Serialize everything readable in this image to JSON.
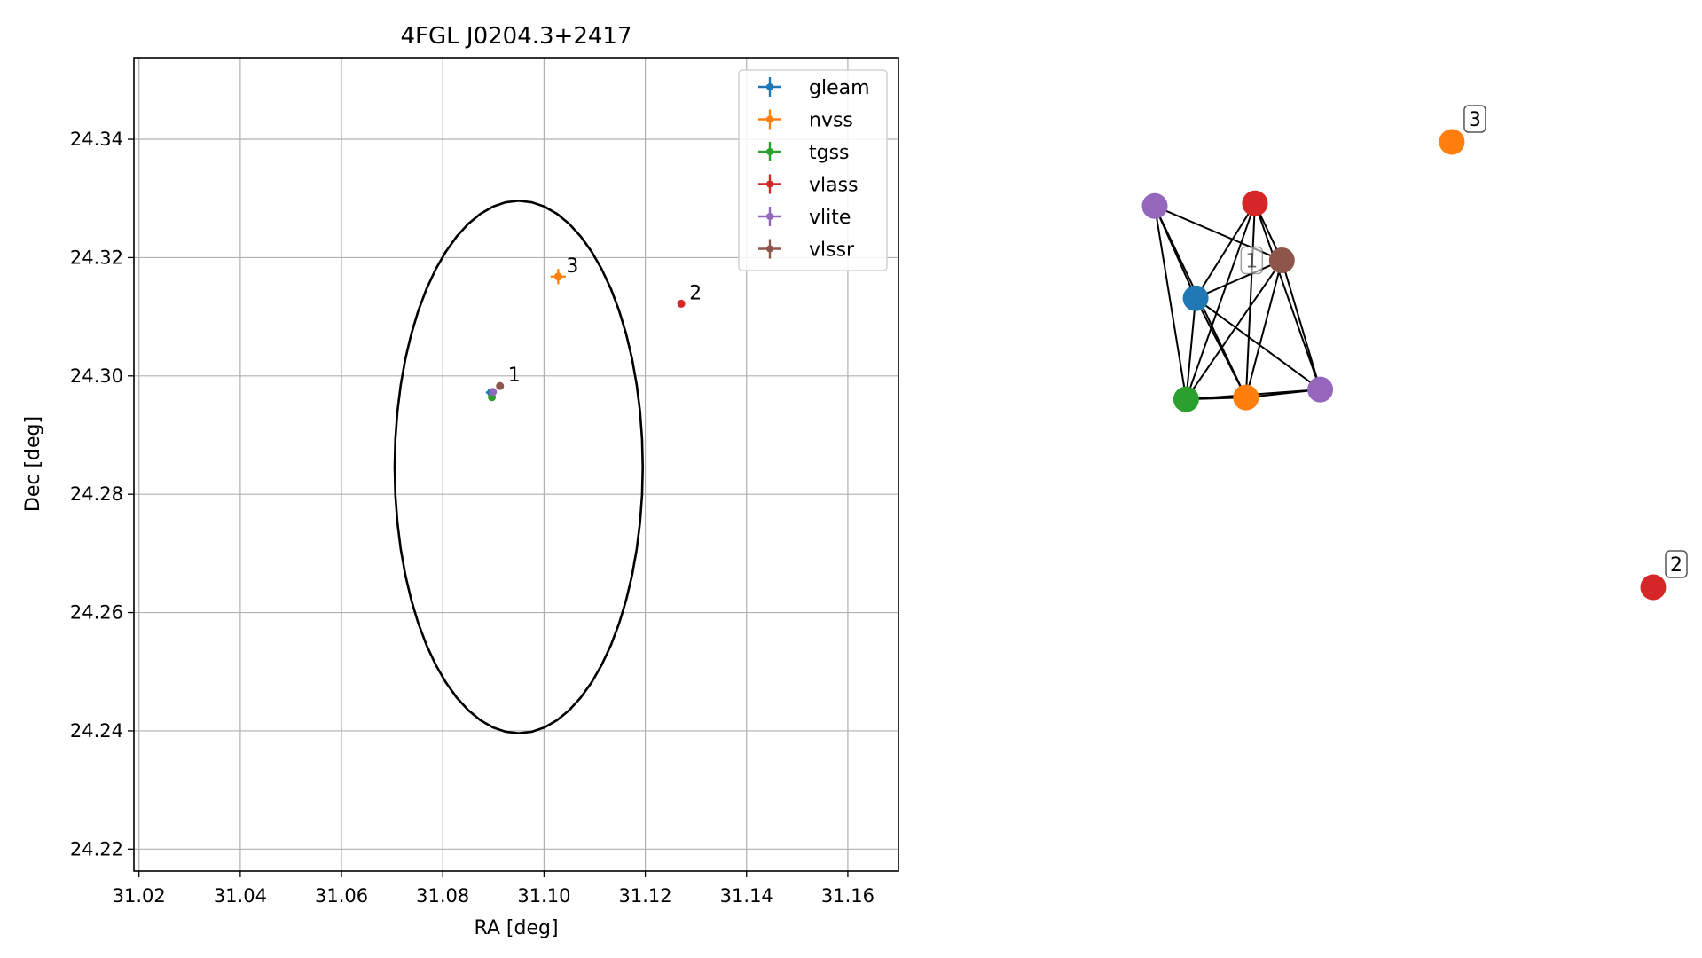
{
  "chart_data": [
    {
      "type": "scatter",
      "title": "4FGL J0204.3+2417",
      "xlabel": "RA [deg]",
      "ylabel": "Dec [deg]",
      "xlim": [
        31.019,
        31.17
      ],
      "ylim": [
        24.2163,
        24.3538
      ],
      "x_ticks": [
        "31.02",
        "31.04",
        "31.06",
        "31.08",
        "31.10",
        "31.12",
        "31.14",
        "31.16"
      ],
      "y_ticks": [
        "24.22",
        "24.24",
        "24.26",
        "24.28",
        "24.30",
        "24.32",
        "24.34"
      ],
      "grid": true,
      "legend_placement": "upper right",
      "legend": [
        {
          "name": "gleam",
          "color": "#1f77b4"
        },
        {
          "name": "nvss",
          "color": "#ff7f0e"
        },
        {
          "name": "tgss",
          "color": "#2ca02c"
        },
        {
          "name": "vlass",
          "color": "#d62728"
        },
        {
          "name": "vlite",
          "color": "#9467bd"
        },
        {
          "name": "vlssr",
          "color": "#8c564b"
        }
      ],
      "series": [
        {
          "name": "gleam",
          "color": "#1f77b4",
          "points": [
            {
              "x": 31.0895,
              "y": 24.2972,
              "xerr": 0.001,
              "yerr": 0.0005
            }
          ]
        },
        {
          "name": "nvss",
          "color": "#ff7f0e",
          "points": [
            {
              "x": 31.1028,
              "y": 24.3168,
              "xerr": 0.0015,
              "yerr": 0.0013
            }
          ]
        },
        {
          "name": "tgss",
          "color": "#2ca02c",
          "points": [
            {
              "x": 31.0897,
              "y": 24.2964,
              "xerr": 0.0003,
              "yerr": 0.0003
            }
          ]
        },
        {
          "name": "vlass",
          "color": "#d62728",
          "points": [
            {
              "x": 31.1271,
              "y": 24.3122,
              "xerr": 0.0002,
              "yerr": 0.0002
            }
          ]
        },
        {
          "name": "vlite",
          "color": "#9467bd",
          "points": [
            {
              "x": 31.0899,
              "y": 24.2973,
              "xerr": 0.0006,
              "yerr": 0.0006
            }
          ]
        },
        {
          "name": "vlssr",
          "color": "#8c564b",
          "points": [
            {
              "x": 31.0913,
              "y": 24.2983,
              "xerr": 0.0004,
              "yerr": 0.0004
            }
          ]
        }
      ],
      "annotations": [
        {
          "text": "1",
          "x": 31.0913,
          "y": 24.2983
        },
        {
          "text": "2",
          "x": 31.1271,
          "y": 24.3122
        },
        {
          "text": "3",
          "x": 31.1028,
          "y": 24.3168
        }
      ],
      "circle": {
        "center_x": 31.095,
        "center_y": 24.2846,
        "radius_x": 0.0245,
        "radius_y": 0.045
      },
      "styles": {
        "circle_color": "#000000",
        "grid_color": "#b0b0b0"
      }
    },
    {
      "type": "network",
      "nodes": [
        {
          "id": "vlite-a",
          "color": "#9467bd",
          "x": 0.0,
          "y": 0.856
        },
        {
          "id": "vlass-a",
          "color": "#d62728",
          "x": 0.201,
          "y": 0.862
        },
        {
          "id": "vlssr",
          "color": "#8c564b",
          "x": 0.255,
          "y": 0.734
        },
        {
          "id": "gleam",
          "color": "#1f77b4",
          "x": 0.082,
          "y": 0.649
        },
        {
          "id": "tgss",
          "color": "#2ca02c",
          "x": 0.063,
          "y": 0.422
        },
        {
          "id": "nvss-a",
          "color": "#ff7f0e",
          "x": 0.183,
          "y": 0.426
        },
        {
          "id": "vlite-b",
          "color": "#9467bd",
          "x": 0.332,
          "y": 0.444
        },
        {
          "id": "nvss-b",
          "color": "#ff7f0e",
          "x": 0.596,
          "y": 1.0
        },
        {
          "id": "vlass-b",
          "color": "#d62728",
          "x": 1.0,
          "y": 0.0
        }
      ],
      "edges": [
        [
          "vlite-a",
          "gleam"
        ],
        [
          "vlite-a",
          "tgss"
        ],
        [
          "vlite-a",
          "nvss-a"
        ],
        [
          "vlite-a",
          "vlssr"
        ],
        [
          "vlass-a",
          "gleam"
        ],
        [
          "vlass-a",
          "tgss"
        ],
        [
          "vlass-a",
          "nvss-a"
        ],
        [
          "vlass-a",
          "vlssr"
        ],
        [
          "vlass-a",
          "vlite-b"
        ],
        [
          "gleam",
          "tgss"
        ],
        [
          "gleam",
          "nvss-a"
        ],
        [
          "gleam",
          "vlssr"
        ],
        [
          "gleam",
          "vlite-b"
        ],
        [
          "tgss",
          "nvss-a"
        ],
        [
          "tgss",
          "vlssr"
        ],
        [
          "tgss",
          "vlite-b"
        ],
        [
          "nvss-a",
          "vlssr"
        ],
        [
          "nvss-a",
          "vlite-b"
        ],
        [
          "vlssr",
          "vlite-b"
        ]
      ],
      "labels": [
        {
          "text": "1",
          "node": "vlssr"
        },
        {
          "text": "2",
          "node": "vlass-b"
        },
        {
          "text": "3",
          "node": "nvss-b"
        }
      ],
      "styles": {
        "edge_color": "#000000"
      }
    }
  ]
}
